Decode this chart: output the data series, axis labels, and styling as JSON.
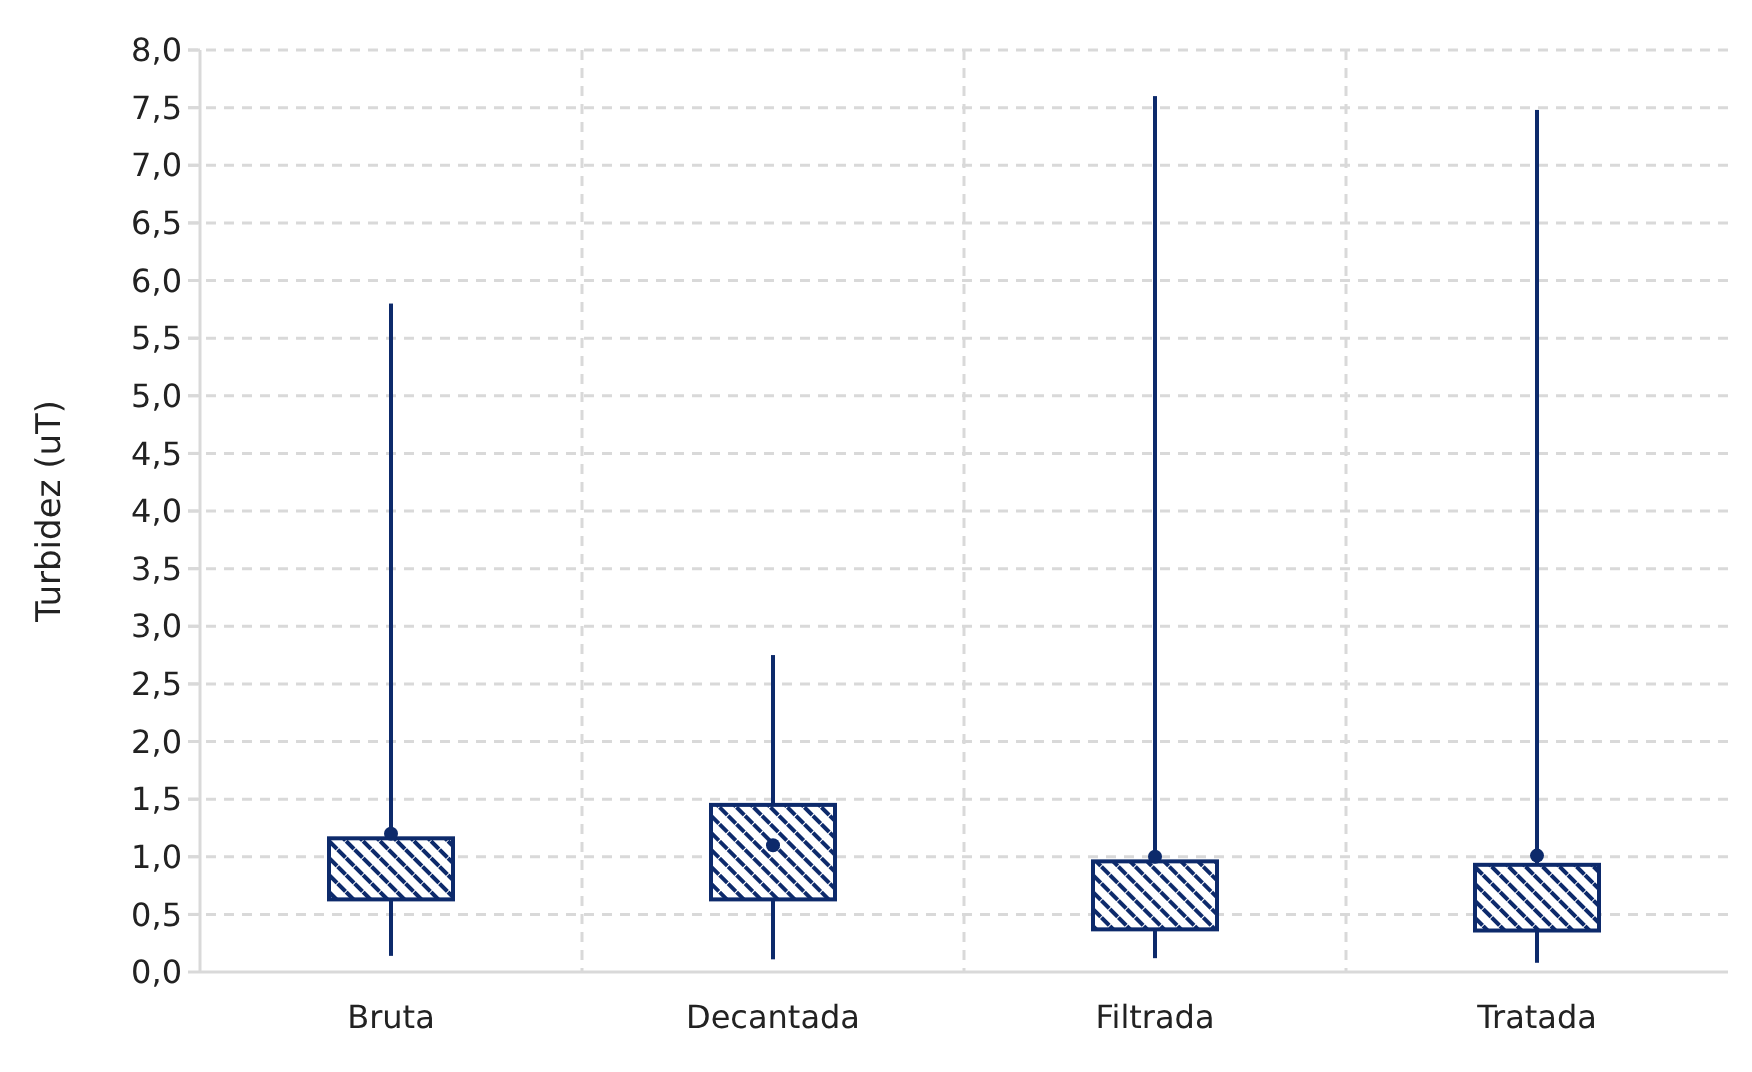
{
  "chart_data": {
    "type": "box",
    "ylabel": "Turbidez (uT)",
    "categories": [
      "Bruta",
      "Decantada",
      "Filtrada",
      "Tratada"
    ],
    "boxes": [
      {
        "low": 0.14,
        "q1": 0.63,
        "q3": 1.16,
        "high": 5.8,
        "mean": 1.2
      },
      {
        "low": 0.11,
        "q1": 0.63,
        "q3": 1.45,
        "high": 2.75,
        "mean": 1.1
      },
      {
        "low": 0.12,
        "q1": 0.37,
        "q3": 0.96,
        "high": 7.6,
        "mean": 1.0
      },
      {
        "low": 0.08,
        "q1": 0.36,
        "q3": 0.93,
        "high": 7.48,
        "mean": 1.01
      }
    ],
    "color": "#0d2a6b",
    "ylim": [
      0,
      8
    ],
    "yticks": [
      {
        "value": 0,
        "label": "0,0"
      },
      {
        "value": 0.5,
        "label": "0,5"
      },
      {
        "value": 1,
        "label": "1,0"
      },
      {
        "value": 1.5,
        "label": "1,5"
      },
      {
        "value": 2,
        "label": "2,0"
      },
      {
        "value": 2.5,
        "label": "2,5"
      },
      {
        "value": 3,
        "label": "3,0"
      },
      {
        "value": 3.5,
        "label": "3,5"
      },
      {
        "value": 4,
        "label": "4,0"
      },
      {
        "value": 4.5,
        "label": "4,5"
      },
      {
        "value": 5,
        "label": "5,0"
      },
      {
        "value": 5.5,
        "label": "5,5"
      },
      {
        "value": 6,
        "label": "6,0"
      },
      {
        "value": 6.5,
        "label": "6,5"
      },
      {
        "value": 7,
        "label": "7,0"
      },
      {
        "value": 7.5,
        "label": "7,5"
      },
      {
        "value": 8,
        "label": "8,0"
      }
    ],
    "grid": true
  }
}
